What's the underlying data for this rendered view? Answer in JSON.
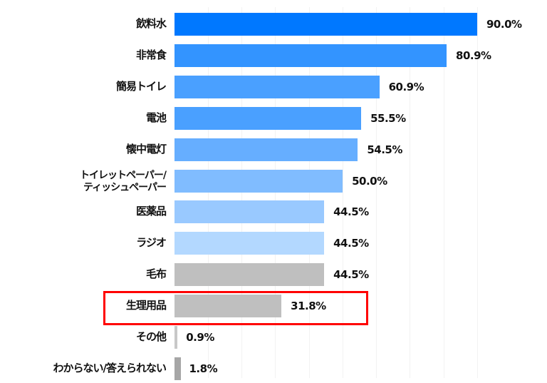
{
  "chart_data": {
    "type": "bar",
    "orientation": "horizontal",
    "categories": [
      "飲料水",
      "非常食",
      "簡易トイレ",
      "電池",
      "懐中電灯",
      "トイレットペーパー/\nティッシュペーパー",
      "医薬品",
      "ラジオ",
      "毛布",
      "生理用品",
      "その他",
      "わからない/答えられない"
    ],
    "values": [
      90.0,
      80.9,
      60.9,
      55.5,
      54.5,
      50.0,
      44.5,
      44.5,
      44.5,
      31.8,
      0.9,
      1.8
    ],
    "value_labels": [
      "90.0%",
      "80.9%",
      "60.9%",
      "55.5%",
      "54.5%",
      "50.0%",
      "44.5%",
      "44.5%",
      "44.5%",
      "31.8%",
      "0.9%",
      "1.8%"
    ],
    "colors": [
      "#0078ff",
      "#3394ff",
      "#4aa0ff",
      "#4aa0ff",
      "#66aeff",
      "#80bcff",
      "#99c9ff",
      "#b3d8ff",
      "#bfbfbf",
      "#bfbfbf",
      "#c8c8c8",
      "#a6a6a6"
    ],
    "highlighted_category": "生理用品",
    "highlight_color": "#ff0000",
    "xlim": [
      0,
      100
    ],
    "title": "",
    "xlabel": "",
    "ylabel": ""
  }
}
